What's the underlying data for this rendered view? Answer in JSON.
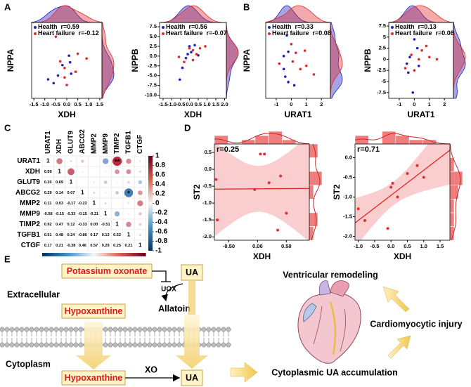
{
  "panel_labels": [
    "A",
    "B",
    "C",
    "D",
    "E"
  ],
  "chart_data": [
    {
      "type": "scatter",
      "xlabel": "XDH",
      "ylabel": "NPPA",
      "xlim": [
        -1.6,
        1.6
      ],
      "ylim": [
        -3,
        5
      ],
      "xticks": [
        -1.5,
        {
          "value": -1,
          "label": "-1.0"
        },
        -0.5,
        {
          "value": 0,
          "label": "0.0"
        },
        0.5,
        {
          "value": 1,
          "label": "1.0"
        },
        1.5
      ],
      "series": [
        {
          "name": "Health",
          "annotation": "r=0.59",
          "color": "#1f1fbf",
          "x": [
            -0.85,
            -0.6,
            -0.4,
            -0.2,
            0.1,
            0.15,
            0.2
          ],
          "y": [
            -1.0,
            -1.4,
            -0.6,
            0.5,
            1.5,
            0.8,
            -0.4
          ]
        },
        {
          "name": "Heart failure",
          "annotation": "r=-0.12",
          "color": "#e02a2a",
          "x": [
            -0.5,
            -0.3,
            -0.1,
            0.0,
            0.4,
            0.5,
            0.9,
            -0.1
          ],
          "y": [
            3.5,
            0.9,
            -0.8,
            -1.6,
            -0.2,
            1.7,
            1.2,
            0.2
          ]
        }
      ]
    },
    {
      "type": "scatter",
      "xlabel": "XDH",
      "ylabel": "NPPB",
      "xlim": [
        -1.7,
        2.1
      ],
      "ylim": [
        -10.8,
        8.6
      ],
      "xticks": [
        -1.5,
        {
          "value": -1,
          "label": "-1.0"
        },
        -0.5,
        {
          "value": 0,
          "label": "0.0"
        },
        0.5,
        {
          "value": 1,
          "label": "1.0"
        },
        1.5,
        {
          "value": 2,
          "label": "2.0"
        }
      ],
      "yticks": [
        7.5,
        {
          "value": 5,
          "label": "5.0"
        },
        2.5,
        {
          "value": 0,
          "label": "0.0"
        },
        -2.5,
        {
          "value": -5,
          "label": "-5.0"
        },
        -7.5,
        {
          "value": -10,
          "label": "-10.0"
        }
      ],
      "series": [
        {
          "name": "Health",
          "annotation": "r=0.56",
          "color": "#1f1fbf",
          "x": [
            -0.55,
            -0.4,
            -0.2,
            -0.1,
            0.0,
            0.1,
            0.3,
            0.5
          ],
          "y": [
            -6,
            -3,
            -0.5,
            0.5,
            2.5,
            1,
            2.8,
            0.2
          ]
        },
        {
          "name": "Heart failure",
          "annotation": "r=-0.07",
          "color": "#e02a2a",
          "x": [
            -0.6,
            -0.3,
            0.0,
            0.2,
            0.2,
            0.4,
            0.6,
            0.9
          ],
          "y": [
            -0.2,
            -1.5,
            2,
            1.5,
            -1,
            0.5,
            2,
            2.5
          ]
        }
      ]
    },
    {
      "type": "scatter",
      "xlabel": "URAT1",
      "ylabel": "NPPA",
      "xlim": [
        -1.7,
        2.6
      ],
      "ylim": [
        -3,
        4
      ],
      "xticks": [
        -1,
        0,
        1,
        2
      ],
      "series": [
        {
          "name": "Health",
          "annotation": "r=0.33",
          "color": "#1f1fbf",
          "x": [
            -0.3,
            -0.2,
            -0.5,
            -0.4,
            -0.2,
            0.2,
            -0.5
          ],
          "y": [
            2.8,
            1.3,
            -0.3,
            -1,
            -1.5,
            -1.8,
            0.9
          ]
        },
        {
          "name": "Heart failure",
          "annotation": "r=0.08",
          "color": "#e02a2a",
          "x": [
            0,
            0.3,
            0.6,
            1.0,
            1.5,
            0.1,
            -0.8,
            0.9
          ],
          "y": [
            2,
            1.2,
            -0.3,
            0,
            -0.8,
            0.4,
            0.2,
            1.4
          ]
        }
      ]
    },
    {
      "type": "scatter",
      "xlabel": "URAT1",
      "ylabel": "NPPB",
      "xlim": [
        -1.7,
        2.6
      ],
      "ylim": [
        -8.8,
        8.3
      ],
      "xticks": [
        -1,
        0,
        1,
        2
      ],
      "yticks": [
        7.5,
        5,
        2.5,
        0,
        -2.5,
        -5,
        -7.5
      ],
      "series": [
        {
          "name": "Health",
          "annotation": "r=0.13",
          "color": "#1f1fbf",
          "x": [
            -0.1,
            0,
            -0.5,
            -0.3,
            0.2,
            -0.4,
            0.3
          ],
          "y": [
            -7.5,
            4.5,
            -1,
            0.5,
            2.5,
            -3,
            -1.5
          ]
        },
        {
          "name": "Heart failure",
          "annotation": "r=0.06",
          "color": "#e02a2a",
          "x": [
            -0.6,
            0,
            0.5,
            1,
            1.5,
            -0.2,
            0.8,
            0.3
          ],
          "y": [
            -2,
            -2.5,
            2,
            0.5,
            0,
            1,
            3,
            0
          ]
        }
      ]
    },
    {
      "type": "heatmap",
      "labels": [
        "URAT1",
        "XDH",
        "GLUT9",
        "ABCG2",
        "MMP2",
        "MMP9",
        "TIMP2",
        "TGFB1",
        "CTGF"
      ],
      "values": [
        [
          1,
          0.59,
          0.2,
          0.29,
          0.11,
          -0.58,
          0.92,
          0.51,
          0.17
        ],
        [
          0.59,
          1,
          0.69,
          0.14,
          0.03,
          -0.15,
          0.47,
          0.48,
          0.21
        ],
        [
          0.2,
          0.69,
          1,
          0.07,
          -0.17,
          -0.33,
          0.12,
          0.24,
          -0.38
        ],
        [
          0.29,
          0.14,
          0.07,
          1,
          -0.22,
          -0.15,
          -0.33,
          -0.86,
          0.46
        ],
        [
          0.11,
          0.03,
          -0.17,
          -0.22,
          1,
          -0.21,
          0,
          0.17,
          0.57
        ],
        [
          -0.58,
          -0.15,
          -0.33,
          -0.15,
          -0.21,
          1,
          -0.51,
          0.13,
          0.29
        ],
        [
          0.92,
          0.47,
          0.12,
          -0.33,
          0,
          -0.51,
          1,
          0.52,
          0.25
        ],
        [
          0.51,
          0.48,
          0.24,
          -0.86,
          0.17,
          0.13,
          0.52,
          1,
          0.21
        ],
        [
          0.17,
          0.21,
          -0.38,
          0.46,
          0.57,
          0.29,
          0.25,
          0.21,
          1
        ]
      ],
      "value_labels": [
        [
          "1",
          null,
          null,
          null,
          null,
          null,
          null,
          null,
          null
        ],
        [
          "0.59",
          "1",
          null,
          null,
          null,
          null,
          null,
          null,
          null
        ],
        [
          "0.20",
          "0.69",
          "1",
          null,
          null,
          null,
          null,
          null,
          null
        ],
        [
          "0.29",
          "0.14",
          "0.07",
          "1",
          null,
          null,
          null,
          null,
          null
        ],
        [
          "0.11",
          "0.03",
          "-0.17",
          "-0.22",
          "1",
          null,
          null,
          null,
          null
        ],
        [
          "-0.58",
          "-0.15",
          "-0.33",
          "-0.15",
          "-0.21",
          "1",
          null,
          null,
          null
        ],
        [
          "0.92",
          "0.47",
          "0.12",
          "-0.33",
          "0.00",
          "-0.51",
          "1",
          null,
          null
        ],
        [
          "0.51",
          "0.48",
          "0.24",
          "-0.86",
          "0.17",
          "0.13",
          "0.52",
          "1",
          null
        ],
        [
          "0.17",
          "0.21",
          "-0.38",
          "0.46",
          "0.57",
          "0.29",
          "0.25",
          "0.21",
          "1"
        ]
      ],
      "annotations": [
        {
          "text": "**",
          "row": 0,
          "col": 6
        },
        {
          "text": "*",
          "row": 3,
          "col": 7
        }
      ],
      "clim": [
        -1,
        1
      ],
      "cticks": [
        1,
        0.8,
        0.6,
        0.4,
        0.2,
        0,
        -0.2,
        -0.4,
        -0.6,
        -0.8,
        -1
      ]
    },
    {
      "type": "regression",
      "xlabel": "XDH",
      "ylabel": "ST2",
      "annotation": "r=0.25",
      "color": "#e03030",
      "xlim": [
        -0.75,
        0.9
      ],
      "ylim": [
        -2.1,
        0.75
      ],
      "xticks": [
        {
          "value": -0.5,
          "label": "-0.50"
        },
        {
          "value": 0,
          "label": "0.00"
        },
        {
          "value": 0.5,
          "label": "0.50"
        }
      ],
      "yticks": [
        0.5,
        {
          "value": 0,
          "label": "0.0"
        },
        -0.5,
        {
          "value": -1,
          "label": "-1.0"
        },
        -1.5,
        {
          "value": -2,
          "label": "-2.0"
        }
      ],
      "x": [
        -0.72,
        -0.7,
        -0.05,
        0.05,
        0.12,
        0.2,
        0.35,
        0.4,
        0.5
      ],
      "y": [
        -0.3,
        -1.5,
        -0.6,
        0.45,
        0.45,
        -0.4,
        -1.8,
        -0.2,
        -1.3
      ]
    },
    {
      "type": "regression",
      "xlabel": "XDH",
      "ylabel": "ST2",
      "annotation": "r=0.71",
      "color": "#e03030",
      "xlim": [
        -1.1,
        1.8
      ],
      "ylim": [
        -2.1,
        0.35
      ],
      "xticks": [
        {
          "value": -1,
          "label": "-1.0"
        },
        -0.5,
        {
          "value": 0,
          "label": "0.0"
        },
        0.5,
        {
          "value": 1,
          "label": "1.0"
        },
        1.5
      ],
      "yticks": [
        {
          "value": 0,
          "label": "0.0"
        },
        -0.5,
        {
          "value": -1,
          "label": "-1.0"
        },
        -1.5,
        {
          "value": -2,
          "label": "-2.0"
        }
      ],
      "x": [
        -1.0,
        -0.8,
        -0.1,
        0.0,
        0.05,
        0.2,
        0.5,
        0.8,
        1.0
      ],
      "y": [
        -1.3,
        -1.6,
        -1.8,
        -0.75,
        -0.65,
        -1.0,
        -0.4,
        -0.2,
        -0.5
      ]
    }
  ],
  "diagram": {
    "potassium_oxonate": "Potassium oxonate",
    "uox": "UOX",
    "ua_extracellular": "UA",
    "extracellular": "Extracellular",
    "hypoxanthine_extracellular": "Hypoxanthine",
    "allatoin": "Allatoin",
    "cytoplasm": "Cytoplasm",
    "hypoxanthine_cytoplasm": "Hypoxanthine",
    "xo": "XO",
    "ua_cytoplasm": "UA",
    "ventricular_remodeling": "Ventricular remodeling",
    "cardiomyocytic_injury": "Cardiomyocytic injury",
    "cytoplasmic_ua": "Cytoplasmic UA accumulation"
  }
}
